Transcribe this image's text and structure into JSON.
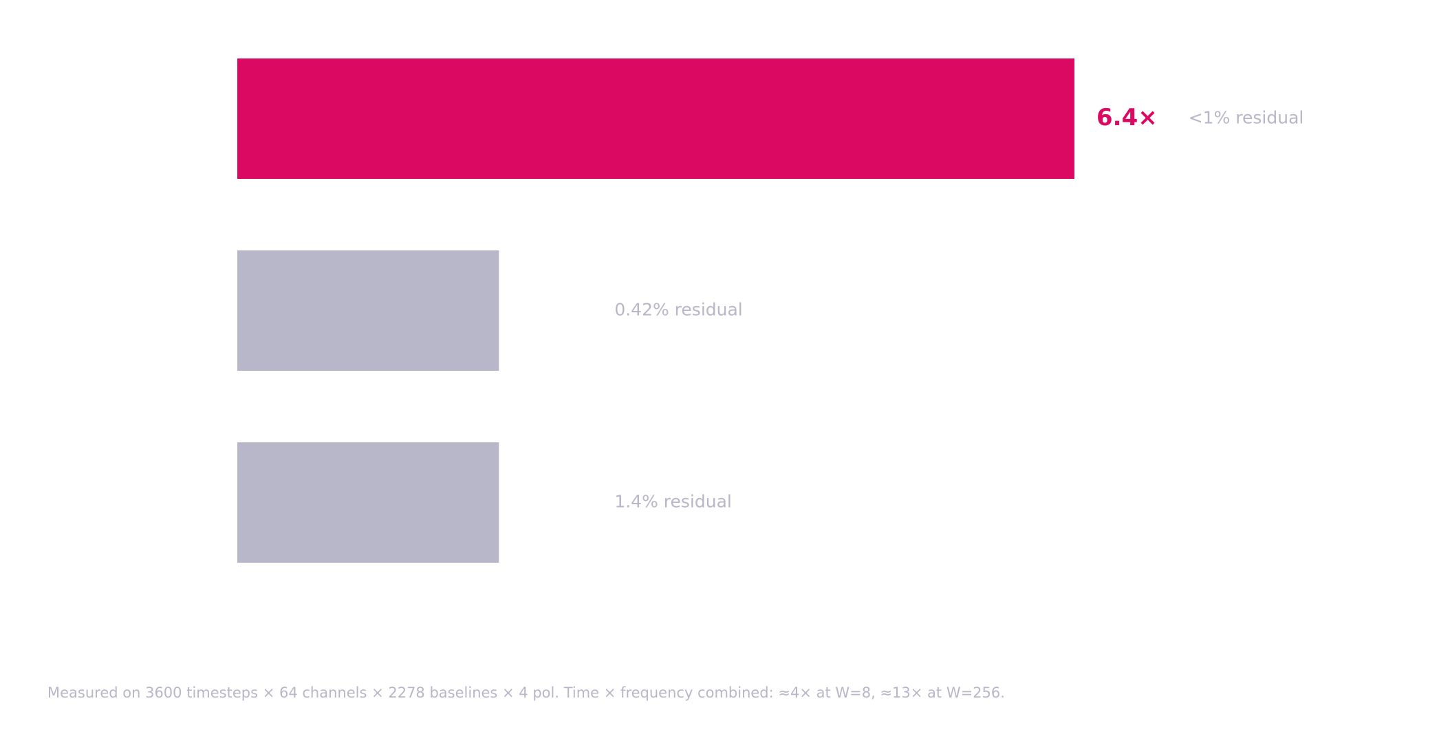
{
  "colors": {
    "highlight": "#db0962",
    "muted": "#b8b7c9",
    "background": "#ffffff"
  },
  "chart_data": {
    "type": "bar",
    "orientation": "horizontal",
    "categories": [
      "",
      "",
      ""
    ],
    "values": [
      6.4,
      2.0,
      2.0
    ],
    "value_labels": [
      "6.4×",
      "",
      ""
    ],
    "annotations": [
      "<1% residual",
      "0.42% residual",
      "1.4% residual"
    ],
    "highlight_index": 0,
    "xlim": [
      0,
      6.4
    ],
    "grid": false,
    "title": "",
    "xlabel": "",
    "ylabel": ""
  },
  "footnote": "Measured on 3600 timesteps × 64 channels × 2278 baselines × 4 pol. Time × frequency combined: ≈4× at W=8, ≈13× at W=256."
}
